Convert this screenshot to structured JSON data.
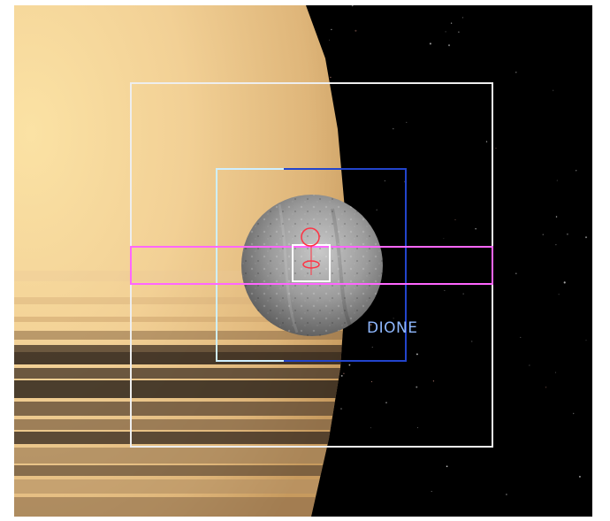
{
  "viewer": {
    "target_label": "DIONE",
    "colors": {
      "space": "#000000",
      "outer_frame": "#eeeeee",
      "fov_frame_left": "#cfefff",
      "fov_frame_right": "#2244cc",
      "strip_frame": "#ff66ff",
      "target_marker": "#ff3344",
      "target_label": "#8fb8ff",
      "center_box": "#ffffff"
    },
    "bodies": [
      {
        "name": "saturn-planet",
        "type": "planet"
      },
      {
        "name": "dione-moon",
        "type": "moon"
      }
    ],
    "overlays": [
      {
        "name": "outer-fov-frame",
        "type": "frame"
      },
      {
        "name": "inner-fov-frame",
        "type": "frame"
      },
      {
        "name": "strip-fov-frame",
        "type": "frame"
      },
      {
        "name": "center-target-box",
        "type": "frame"
      }
    ]
  }
}
